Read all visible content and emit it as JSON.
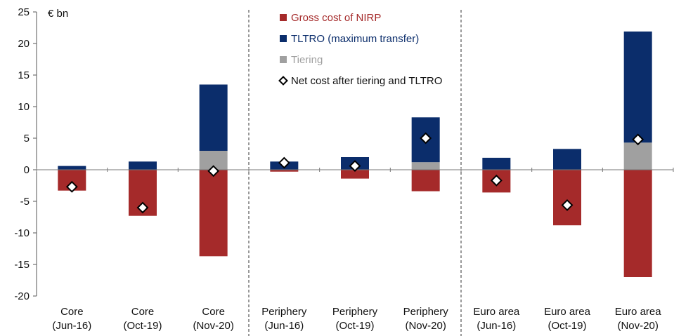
{
  "chart_data": {
    "type": "bar",
    "stacked": true,
    "unit_label": "€ bn",
    "ylim": [
      -20,
      25
    ],
    "yticks": [
      25,
      20,
      15,
      10,
      5,
      0,
      -5,
      -10,
      -15,
      -20
    ],
    "categories": [
      [
        "Core",
        "(Jun-16)"
      ],
      [
        "Core",
        "(Oct-19)"
      ],
      [
        "Core",
        "(Nov-20)"
      ],
      [
        "Periphery",
        "(Jun-16)"
      ],
      [
        "Periphery",
        "(Oct-19)"
      ],
      [
        "Periphery",
        "(Nov-20)"
      ],
      [
        "Euro area",
        "(Jun-16)"
      ],
      [
        "Euro area",
        "(Oct-19)"
      ],
      [
        "Euro area",
        "(Nov-20)"
      ]
    ],
    "group_separators_after": [
      2,
      5
    ],
    "series": [
      {
        "name": "Gross cost of NIRP",
        "kind": "bar",
        "color": "#a52a2a",
        "values": [
          -3.3,
          -7.3,
          -13.7,
          -0.3,
          -1.4,
          -3.4,
          -3.6,
          -8.8,
          -17.0
        ]
      },
      {
        "name": "Tiering",
        "kind": "bar",
        "color": "#a0a0a0",
        "values": [
          0,
          0,
          3.0,
          0,
          0,
          1.2,
          0,
          0,
          4.3
        ]
      },
      {
        "name": "TLTRO (maximum transfer)",
        "kind": "bar",
        "color": "#0b2d6b",
        "values": [
          0.6,
          1.3,
          10.5,
          1.3,
          2.0,
          7.1,
          1.9,
          3.3,
          17.6
        ]
      },
      {
        "name": "Net cost after tiering and TLTRO",
        "kind": "marker",
        "color": "#ffffff",
        "values": [
          -2.7,
          -6.0,
          -0.2,
          1.1,
          0.6,
          5.0,
          -1.7,
          -5.6,
          4.8
        ]
      }
    ],
    "legend": {
      "position": "top-center",
      "order": [
        "Gross cost of NIRP",
        "TLTRO (maximum transfer)",
        "Tiering",
        "Net cost after tiering and TLTRO"
      ]
    },
    "grid": false
  }
}
